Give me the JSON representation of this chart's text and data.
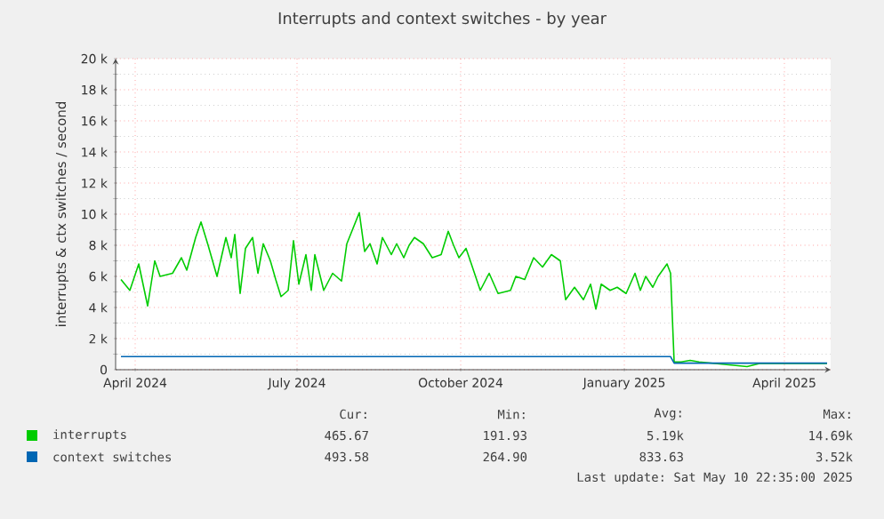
{
  "chart_data": {
    "type": "line",
    "title": "Interrupts and context switches - by year",
    "ylabel": "interrupts & ctx switches / second",
    "x": [
      "2024-03-24",
      "2024-03-29",
      "2024-04-03",
      "2024-04-08",
      "2024-04-12",
      "2024-04-15",
      "2024-04-22",
      "2024-04-27",
      "2024-04-30",
      "2024-05-05",
      "2024-05-08",
      "2024-05-12",
      "2024-05-17",
      "2024-05-22",
      "2024-05-25",
      "2024-05-27",
      "2024-05-30",
      "2024-06-02",
      "2024-06-06",
      "2024-06-09",
      "2024-06-12",
      "2024-06-16",
      "2024-06-19",
      "2024-06-22",
      "2024-06-26",
      "2024-06-29",
      "2024-07-02",
      "2024-07-06",
      "2024-07-09",
      "2024-07-11",
      "2024-07-16",
      "2024-07-21",
      "2024-07-26",
      "2024-07-29",
      "2024-08-05",
      "2024-08-08",
      "2024-08-11",
      "2024-08-15",
      "2024-08-18",
      "2024-08-23",
      "2024-08-26",
      "2024-08-30",
      "2024-09-02",
      "2024-09-05",
      "2024-09-10",
      "2024-09-15",
      "2024-09-20",
      "2024-09-24",
      "2024-09-27",
      "2024-09-30",
      "2024-10-04",
      "2024-10-07",
      "2024-10-12",
      "2024-10-17",
      "2024-10-22",
      "2024-10-29",
      "2024-11-01",
      "2024-11-06",
      "2024-11-11",
      "2024-11-16",
      "2024-11-21",
      "2024-11-26",
      "2024-11-29",
      "2024-12-04",
      "2024-12-09",
      "2024-12-13",
      "2024-12-16",
      "2024-12-19",
      "2024-12-24",
      "2024-12-28",
      "2025-01-02",
      "2025-01-07",
      "2025-01-10",
      "2025-01-13",
      "2025-01-17",
      "2025-01-20",
      "2025-01-25",
      "2025-01-27",
      "2025-01-29",
      "2025-02-02",
      "2025-02-07",
      "2025-02-12",
      "2025-03-11",
      "2025-03-18",
      "2025-04-25"
    ],
    "series": [
      {
        "name": "interrupts",
        "color": "#00cc00",
        "values": [
          5800,
          5100,
          6800,
          4100,
          7000,
          6000,
          6200,
          7200,
          6400,
          8500,
          9500,
          8000,
          6000,
          8500,
          7200,
          8700,
          4900,
          7800,
          8500,
          6200,
          8100,
          7000,
          5800,
          4700,
          5100,
          8300,
          5500,
          7400,
          5100,
          7400,
          5100,
          6200,
          5700,
          8100,
          10100,
          7600,
          8100,
          6800,
          8500,
          7400,
          8100,
          7200,
          8000,
          8500,
          8100,
          7200,
          7400,
          8900,
          8000,
          7200,
          7800,
          6800,
          5100,
          6200,
          4900,
          5100,
          6000,
          5800,
          7200,
          6600,
          7400,
          7000,
          4500,
          5300,
          4500,
          5500,
          3900,
          5500,
          5100,
          5300,
          4900,
          6200,
          5100,
          6000,
          5300,
          6000,
          6800,
          6200,
          500,
          500,
          600,
          500,
          200,
          400,
          400
        ]
      },
      {
        "name": "context switches",
        "color": "#0066b3",
        "values": [
          840,
          840,
          840,
          840,
          840,
          840,
          840,
          840,
          840,
          840,
          840,
          840,
          840,
          840,
          840,
          840,
          840,
          840,
          840,
          840,
          840,
          840,
          840,
          840,
          840,
          840,
          840,
          840,
          840,
          840,
          840,
          840,
          840,
          840,
          840,
          840,
          840,
          840,
          840,
          840,
          840,
          840,
          840,
          840,
          840,
          840,
          840,
          840,
          840,
          840,
          840,
          840,
          840,
          840,
          840,
          840,
          840,
          840,
          840,
          840,
          840,
          840,
          840,
          840,
          840,
          840,
          840,
          840,
          840,
          840,
          840,
          840,
          840,
          840,
          840,
          840,
          840,
          840,
          420,
          420,
          420,
          420,
          420,
          420,
          420
        ]
      }
    ],
    "xlim": [
      "2024-03-21",
      "2025-04-27"
    ],
    "xticks": [
      {
        "value": "2024-04-01",
        "label": "April 2024"
      },
      {
        "value": "2024-07-01",
        "label": "July 2024"
      },
      {
        "value": "2024-10-01",
        "label": "October 2024"
      },
      {
        "value": "2025-01-01",
        "label": "January 2025"
      },
      {
        "value": "2025-04-01",
        "label": "April 2025"
      }
    ],
    "ylim": [
      0,
      20000
    ],
    "yticks": [
      0,
      {
        "value": 2000,
        "label": "2 k"
      },
      {
        "value": 4000,
        "label": "4 k"
      },
      {
        "value": 6000,
        "label": "6 k"
      },
      {
        "value": 8000,
        "label": "8 k"
      },
      {
        "value": 10000,
        "label": "10 k"
      },
      {
        "value": 12000,
        "label": "12 k"
      },
      {
        "value": 14000,
        "label": "14 k"
      },
      {
        "value": 16000,
        "label": "16 k"
      },
      {
        "value": 18000,
        "label": "18 k"
      },
      {
        "value": 20000,
        "label": "20 k"
      }
    ],
    "grid": true,
    "legend": "bottom",
    "annotations": [
      "Cur:",
      "Min:",
      "Avg:",
      "Max:",
      "465.67",
      "191.93",
      "5.19k",
      "14.69k",
      "493.58",
      "264.90",
      "833.63",
      "3.52k",
      "Last update: Sat May 10 22:35:00 2025"
    ]
  }
}
